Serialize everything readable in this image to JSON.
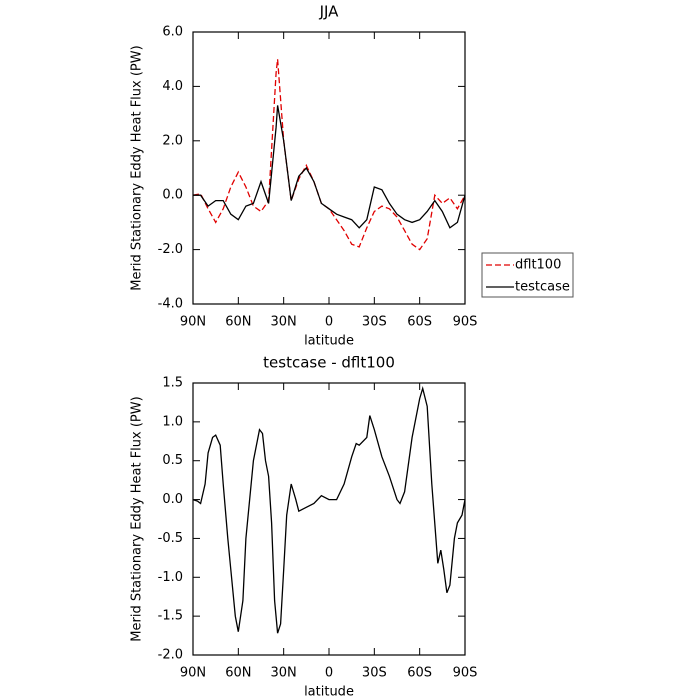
{
  "chart_data": [
    {
      "type": "line",
      "title": "JJA",
      "xlabel": "latitude",
      "ylabel": "Merid Stationary Eddy Heat Flux (PW)",
      "xlim": [
        90,
        -90
      ],
      "ylim": [
        -4,
        6
      ],
      "xticks": [
        {
          "value": 90,
          "label": "90N"
        },
        {
          "value": 60,
          "label": "60N"
        },
        {
          "value": 30,
          "label": "30N"
        },
        0,
        {
          "value": -30,
          "label": "30S"
        },
        {
          "value": -60,
          "label": "60S"
        },
        {
          "value": -90,
          "label": "90S"
        }
      ],
      "yticks": [
        {
          "value": 6,
          "label": "6.0"
        },
        {
          "value": 4,
          "label": "4.0"
        },
        {
          "value": 2,
          "label": "2.0"
        },
        {
          "value": 0,
          "label": "0.0"
        },
        {
          "value": -2,
          "label": "-2.0"
        },
        {
          "value": -4,
          "label": "-4.0"
        }
      ],
      "legend": "outside-right",
      "x": [
        90,
        85,
        80,
        75,
        70,
        65,
        60,
        55,
        50,
        45,
        40,
        35,
        34,
        30,
        25,
        20,
        15,
        10,
        5,
        0,
        -5,
        -10,
        -15,
        -20,
        -25,
        -30,
        -35,
        -40,
        -45,
        -50,
        -55,
        -60,
        -65,
        -70,
        -75,
        -80,
        -85,
        -90
      ],
      "series": [
        {
          "name": "dflt100",
          "color": "#e00000",
          "dashed": true,
          "values": [
            0.0,
            0.05,
            -0.5,
            -1.0,
            -0.5,
            0.3,
            0.85,
            0.3,
            -0.4,
            -0.6,
            -0.2,
            4.5,
            5.0,
            2.0,
            -0.2,
            0.6,
            1.1,
            0.5,
            -0.3,
            -0.5,
            -0.9,
            -1.3,
            -1.8,
            -1.9,
            -1.2,
            -0.6,
            -0.4,
            -0.5,
            -0.8,
            -1.3,
            -1.8,
            -2.0,
            -1.6,
            0.0,
            -0.3,
            -0.1,
            -0.5,
            0.0
          ]
        },
        {
          "name": "testcase",
          "color": "#000000",
          "dashed": false,
          "values": [
            0.0,
            0.0,
            -0.4,
            -0.2,
            -0.2,
            -0.7,
            -0.9,
            -0.4,
            -0.3,
            0.5,
            -0.3,
            2.5,
            3.3,
            2.0,
            -0.2,
            0.7,
            1.0,
            0.5,
            -0.3,
            -0.5,
            -0.7,
            -0.8,
            -0.9,
            -1.2,
            -0.9,
            0.3,
            0.2,
            -0.3,
            -0.7,
            -0.9,
            -1.0,
            -0.9,
            -0.6,
            -0.2,
            -0.6,
            -1.2,
            -1.0,
            0.0
          ]
        }
      ]
    },
    {
      "type": "line",
      "title": "testcase - dflt100",
      "xlabel": "latitude",
      "ylabel": "Merid Stationary Eddy Heat Flux (PW)",
      "xlim": [
        90,
        -90
      ],
      "ylim": [
        -2,
        1.5
      ],
      "xticks": [
        {
          "value": 90,
          "label": "90N"
        },
        {
          "value": 60,
          "label": "60N"
        },
        {
          "value": 30,
          "label": "30N"
        },
        0,
        {
          "value": -30,
          "label": "30S"
        },
        {
          "value": -60,
          "label": "60S"
        },
        {
          "value": -90,
          "label": "90S"
        }
      ],
      "yticks": [
        1.5,
        {
          "value": 1,
          "label": "1.0"
        },
        0.5,
        {
          "value": 0,
          "label": "0.0"
        },
        -0.5,
        {
          "value": -1,
          "label": "-1.0"
        },
        -1.5,
        {
          "value": -2,
          "label": "-2.0"
        }
      ],
      "x": [
        90,
        87,
        85,
        82,
        80,
        77,
        75,
        72,
        70,
        67,
        65,
        62,
        60,
        57,
        55,
        50,
        46,
        44,
        42,
        40,
        38,
        36,
        34,
        32,
        30,
        28,
        25,
        22,
        20,
        15,
        10,
        5,
        0,
        -5,
        -10,
        -15,
        -18,
        -20,
        -25,
        -27,
        -30,
        -35,
        -40,
        -45,
        -47,
        -50,
        -55,
        -60,
        -62,
        -65,
        -68,
        -72,
        -74,
        -76,
        -78,
        -80,
        -83,
        -85,
        -88,
        -90
      ],
      "series": [
        {
          "name": "testcase - dflt100",
          "color": "#000000",
          "dashed": false,
          "values": [
            0.0,
            -0.02,
            -0.05,
            0.2,
            0.6,
            0.8,
            0.83,
            0.7,
            0.2,
            -0.5,
            -0.9,
            -1.5,
            -1.7,
            -1.3,
            -0.5,
            0.5,
            0.9,
            0.85,
            0.5,
            0.3,
            -0.3,
            -1.3,
            -1.72,
            -1.6,
            -0.9,
            -0.2,
            0.2,
            0.0,
            -0.15,
            -0.1,
            -0.05,
            0.05,
            0.0,
            0.0,
            0.2,
            0.55,
            0.72,
            0.7,
            0.8,
            1.08,
            0.9,
            0.55,
            0.3,
            0.0,
            -0.05,
            0.1,
            0.8,
            1.3,
            1.43,
            1.2,
            0.2,
            -0.82,
            -0.65,
            -0.9,
            -1.2,
            -1.1,
            -0.5,
            -0.3,
            -0.2,
            0.0
          ]
        }
      ]
    }
  ]
}
